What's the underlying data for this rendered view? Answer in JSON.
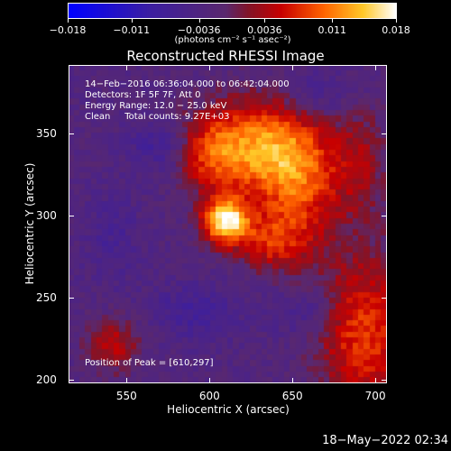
{
  "colorbar": {
    "tick_labels": [
      "−0.018",
      "−0.011",
      "−0.0036",
      "0.0036",
      "0.011",
      "0.018"
    ],
    "tick_values": [
      -0.018,
      -0.011,
      -0.0036,
      0.0036,
      0.011,
      0.018
    ],
    "units": "(photons cm⁻² s⁻¹ asec⁻²)",
    "range": [
      -0.018,
      0.018
    ]
  },
  "title": "Reconstructed RHESSI Image",
  "info": {
    "line1": "14−Feb−2016 06:36:04.000 to 06:42:04.000",
    "line2": "Detectors: 1F 5F 7F, Att 0",
    "line3": "Energy Range: 12.0 − 25.0 keV",
    "line4": "Clean     Total counts: 9.27E+03"
  },
  "peak": "Position of Peak = [610,297]",
  "axes": {
    "xlabel": "Heliocentric X (arcsec)",
    "ylabel": "Heliocentric Y (arcsec)",
    "xticks": [
      "550",
      "600",
      "650",
      "700"
    ],
    "xtick_values": [
      550,
      600,
      650,
      700
    ],
    "yticks": [
      "200",
      "250",
      "300",
      "350"
    ],
    "ytick_values": [
      200,
      250,
      300,
      350
    ],
    "xrange": [
      515,
      707
    ],
    "yrange": [
      198,
      392
    ]
  },
  "footer": "18−May−2022 02:34",
  "image": {
    "peak_x": 610,
    "peak_y": 297
  }
}
